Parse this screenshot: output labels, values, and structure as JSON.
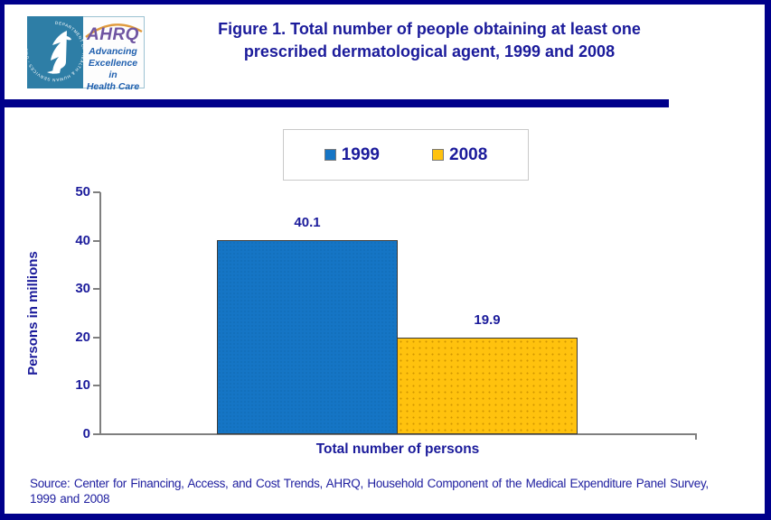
{
  "header": {
    "title_line1": "Figure 1. Total number of people obtaining at least one",
    "title_line2": "prescribed dermatological agent, 1999 and 2008"
  },
  "logo": {
    "seal_text": "DEPARTMENT OF HEALTH & HUMAN SERVICES - USA",
    "org": "AHRQ",
    "tagline_line1": "Advancing",
    "tagline_line2": "Excellence in",
    "tagline_line3": "Health Care"
  },
  "chart_data": {
    "type": "bar",
    "title": "Figure 1. Total number of people obtaining at least one prescribed dermatological agent, 1999 and 2008",
    "categories": [
      "Total number of persons"
    ],
    "series": [
      {
        "name": "1999",
        "values": [
          40.1
        ],
        "color": "#1575C5"
      },
      {
        "name": "2008",
        "values": [
          19.9
        ],
        "color": "#FFC20E"
      }
    ],
    "xlabel": "Total number of persons",
    "ylabel": "Persons in millions",
    "ylim": [
      0,
      50
    ],
    "yticks": [
      0,
      10,
      20,
      30,
      40,
      50
    ],
    "grid": false,
    "legend_position": "top-center"
  },
  "footer": {
    "source_line1": "Source: Center for Financing, Access, and Cost Trends, AHRQ, Household Component of the Medical Expenditure Panel Survey,",
    "source_line2": "1999 and 2008"
  },
  "colors": {
    "page_border": "#00008B",
    "divider": "#00008B",
    "text_navy": "#1B1B9B",
    "axis_gray": "#7F7F7F",
    "bar_1999": "#1575C5",
    "bar_2008": "#FFC20E",
    "seal_teal": "#2E7EA6",
    "ahrq_purple": "#6F55A2",
    "tagline_blue": "#1F5FAE"
  }
}
